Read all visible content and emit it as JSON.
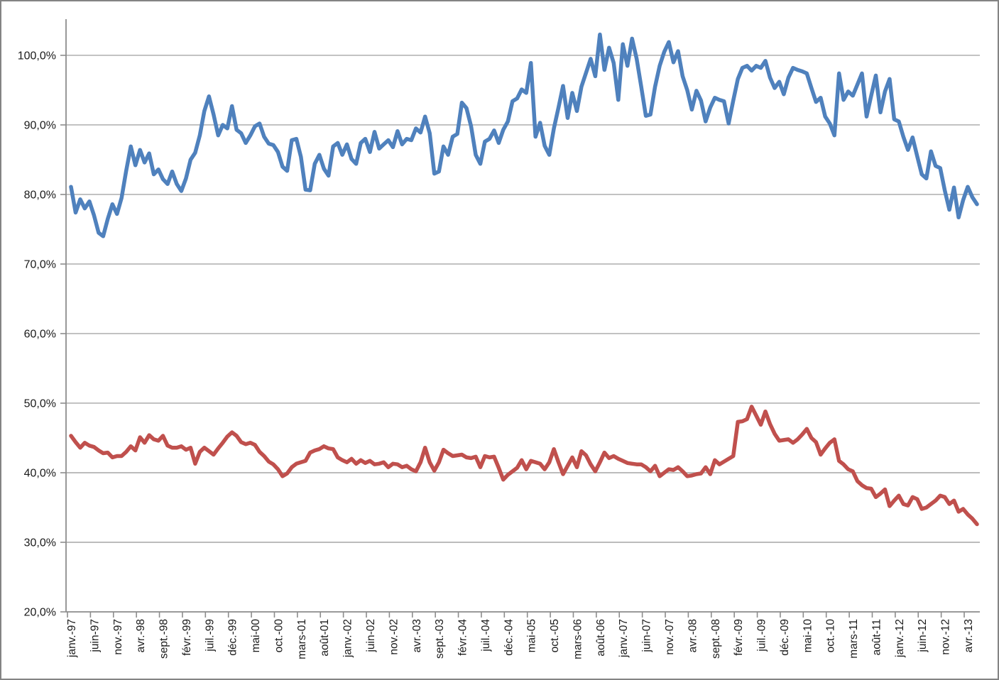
{
  "chart_data": {
    "type": "line",
    "title": "",
    "xlabel": "",
    "ylabel": "",
    "grid": true,
    "legend": "none",
    "ylim": [
      20,
      105.2
    ],
    "y_ticks": [
      {
        "value": 100,
        "label": "100,0%"
      },
      {
        "value": 90,
        "label": "90,0%"
      },
      {
        "value": 80,
        "label": "80,0%"
      },
      {
        "value": 70,
        "label": "70,0%"
      },
      {
        "value": 60,
        "label": "60,0%"
      },
      {
        "value": 50,
        "label": "50,0%"
      },
      {
        "value": 40,
        "label": "40,0%"
      },
      {
        "value": 30,
        "label": "30,0%"
      },
      {
        "value": 20,
        "label": "20,0%"
      }
    ],
    "x_label_step": 5,
    "x_labels": [
      "janv.-97",
      "juin-97",
      "nov.-97",
      "avr.-98",
      "sept.-98",
      "févr.-99",
      "juil.-99",
      "déc.-99",
      "mai-00",
      "oct.-00",
      "mars-01",
      "août-01",
      "janv.-02",
      "juin-02",
      "nov.-02",
      "avr.-03",
      "sept.-03",
      "févr.-04",
      "juil.-04",
      "déc.-04",
      "mai-05",
      "oct.-05",
      "mars-06",
      "août-06",
      "janv.-07",
      "juin-07",
      "nov.-07",
      "avr.-08",
      "sept.-08",
      "févr.-09",
      "juil.-09",
      "déc.-09",
      "mai-10",
      "oct.-10",
      "mars-11",
      "août-11",
      "janv.-12",
      "juin-12",
      "nov.-12",
      "avr.-13"
    ],
    "series": [
      {
        "id": "blue_series",
        "color": "#4F81BD",
        "values": [
          81.1,
          77.4,
          79.3,
          78.0,
          79.0,
          77.0,
          74.5,
          74.0,
          76.5,
          78.6,
          77.2,
          79.5,
          83.4,
          86.9,
          84.2,
          86.4,
          84.6,
          85.9,
          82.9,
          83.6,
          82.2,
          81.5,
          83.3,
          81.5,
          80.5,
          82.3,
          85.0,
          86.0,
          88.5,
          92.0,
          94.1,
          91.5,
          88.5,
          90.0,
          89.5,
          92.7,
          89.3,
          88.8,
          87.4,
          88.5,
          89.8,
          90.2,
          88.3,
          87.3,
          87.1,
          86.1,
          84.0,
          83.4,
          87.8,
          88.0,
          85.4,
          80.7,
          80.6,
          84.4,
          85.7,
          83.7,
          82.7,
          86.9,
          87.4,
          85.7,
          87.2,
          85.1,
          84.4,
          87.4,
          88.0,
          86.1,
          89.0,
          86.6,
          87.2,
          87.8,
          86.8,
          89.1,
          87.2,
          88.0,
          87.8,
          89.5,
          88.9,
          91.2,
          88.8,
          83.0,
          83.3,
          86.9,
          85.7,
          88.3,
          88.7,
          93.2,
          92.4,
          89.8,
          85.7,
          84.4,
          87.6,
          88.0,
          89.2,
          87.4,
          89.3,
          90.5,
          93.4,
          93.8,
          95.1,
          94.6,
          98.9,
          88.3,
          90.3,
          87.0,
          85.7,
          89.5,
          92.5,
          95.6,
          91.0,
          94.6,
          92.0,
          95.5,
          97.5,
          99.5,
          97.0,
          103.0,
          97.9,
          101.1,
          98.9,
          93.6,
          101.6,
          98.5,
          102.4,
          99.5,
          95.5,
          91.3,
          91.5,
          95.5,
          98.5,
          100.5,
          101.9,
          99.0,
          100.6,
          97.0,
          95.0,
          92.2,
          94.9,
          93.5,
          90.5,
          92.5,
          93.9,
          93.6,
          93.4,
          90.2,
          93.5,
          96.6,
          98.2,
          98.5,
          97.8,
          98.5,
          98.2,
          99.2,
          96.8,
          95.3,
          96.2,
          94.4,
          96.8,
          98.2,
          97.9,
          97.7,
          97.4,
          95.3,
          93.3,
          93.9,
          91.2,
          90.2,
          88.5,
          97.4,
          93.6,
          94.8,
          94.2,
          95.8,
          97.4,
          91.2,
          94.2,
          97.1,
          91.8,
          94.8,
          96.6,
          90.8,
          90.5,
          88.3,
          86.4,
          88.2,
          85.5,
          82.9,
          82.3,
          86.2,
          84.1,
          83.8,
          80.6,
          77.8,
          81.0,
          76.7,
          79.2,
          81.1,
          79.6,
          78.6
        ]
      },
      {
        "id": "red_series",
        "color": "#C0504D",
        "values": [
          45.3,
          44.4,
          43.6,
          44.3,
          43.9,
          43.7,
          43.2,
          42.8,
          42.9,
          42.2,
          42.4,
          42.4,
          43.0,
          43.8,
          43.2,
          45.1,
          44.3,
          45.4,
          44.8,
          44.6,
          45.3,
          43.9,
          43.6,
          43.6,
          43.8,
          43.3,
          43.6,
          41.3,
          43.0,
          43.6,
          43.1,
          42.6,
          43.5,
          44.3,
          45.2,
          45.8,
          45.3,
          44.4,
          44.1,
          44.3,
          44.0,
          43.0,
          42.4,
          41.6,
          41.2,
          40.5,
          39.5,
          39.9,
          40.8,
          41.3,
          41.5,
          41.7,
          42.9,
          43.2,
          43.4,
          43.8,
          43.5,
          43.4,
          42.2,
          41.8,
          41.5,
          42.0,
          41.3,
          41.8,
          41.4,
          41.7,
          41.2,
          41.3,
          41.5,
          40.8,
          41.3,
          41.2,
          40.8,
          41.0,
          40.5,
          40.2,
          41.5,
          43.6,
          41.5,
          40.3,
          41.5,
          43.3,
          42.8,
          42.4,
          42.5,
          42.6,
          42.2,
          42.1,
          42.3,
          40.8,
          42.4,
          42.2,
          42.3,
          40.7,
          39.0,
          39.7,
          40.2,
          40.7,
          41.8,
          40.5,
          41.7,
          41.5,
          41.3,
          40.5,
          41.5,
          43.4,
          41.5,
          39.8,
          41.0,
          42.2,
          40.8,
          43.1,
          42.5,
          41.2,
          40.2,
          41.5,
          42.9,
          42.1,
          42.4,
          42.0,
          41.7,
          41.4,
          41.3,
          41.2,
          41.2,
          40.8,
          40.2,
          41.0,
          39.5,
          40.0,
          40.5,
          40.4,
          40.8,
          40.2,
          39.5,
          39.6,
          39.8,
          39.9,
          40.8,
          39.8,
          41.8,
          41.2,
          41.6,
          42.0,
          42.4,
          47.3,
          47.4,
          47.7,
          49.5,
          48.2,
          46.9,
          48.8,
          47.0,
          45.6,
          44.6,
          44.7,
          44.8,
          44.3,
          44.8,
          45.5,
          46.3,
          45.0,
          44.4,
          42.6,
          43.5,
          44.3,
          44.8,
          41.7,
          41.2,
          40.5,
          40.2,
          38.8,
          38.2,
          37.8,
          37.7,
          36.5,
          37.0,
          37.6,
          35.2,
          36.0,
          36.7,
          35.5,
          35.3,
          36.5,
          36.2,
          34.8,
          35.0,
          35.5,
          36.0,
          36.7,
          36.5,
          35.5,
          36.0,
          34.4,
          34.8,
          34.0,
          33.4,
          32.6
        ]
      }
    ],
    "colors": {
      "gridline": "#A6A6A6",
      "axis": "#8C8C8C",
      "frame_border": "#848484",
      "background": "#FFFFFF",
      "text": "#1A1A1A"
    }
  }
}
